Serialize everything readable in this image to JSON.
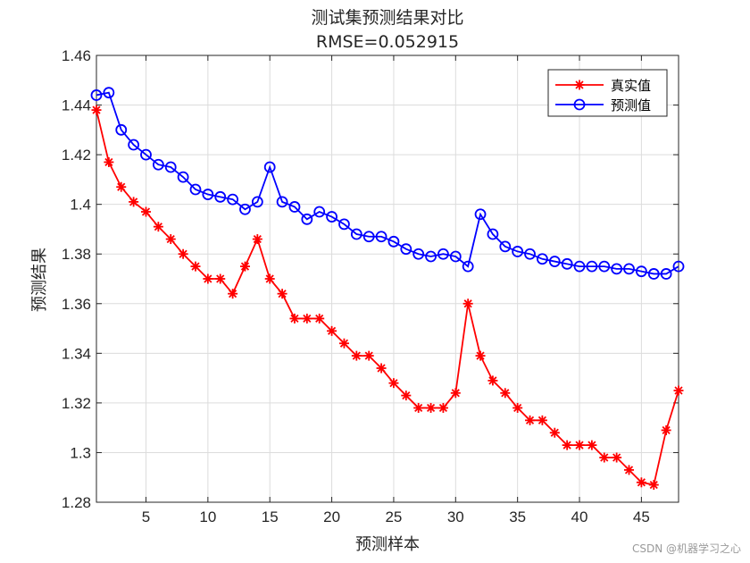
{
  "chart_data": {
    "type": "line",
    "title": "测试集预测结果对比",
    "subtitle": "RMSE=0.052915",
    "xlabel": "预测样本",
    "ylabel": "预测结果",
    "xlim": [
      1,
      48
    ],
    "ylim": [
      1.28,
      1.46
    ],
    "xticks": [
      5,
      10,
      15,
      20,
      25,
      30,
      35,
      40,
      45
    ],
    "yticks": [
      1.28,
      1.3,
      1.32,
      1.34,
      1.36,
      1.38,
      1.4,
      1.42,
      1.44,
      1.46
    ],
    "ytick_labels": [
      "1.28",
      "1.3",
      "1.32",
      "1.34",
      "1.36",
      "1.38",
      "1.4",
      "1.42",
      "1.44",
      "1.46"
    ],
    "grid": true,
    "legend_position": "top-right",
    "x": [
      1,
      2,
      3,
      4,
      5,
      6,
      7,
      8,
      9,
      10,
      11,
      12,
      13,
      14,
      15,
      16,
      17,
      18,
      19,
      20,
      21,
      22,
      23,
      24,
      25,
      26,
      27,
      28,
      29,
      30,
      31,
      32,
      33,
      34,
      35,
      36,
      37,
      38,
      39,
      40,
      41,
      42,
      43,
      44,
      45,
      46,
      47,
      48
    ],
    "series": [
      {
        "name": "真实值",
        "color": "#ff0000",
        "marker": "asterisk",
        "values": [
          1.438,
          1.417,
          1.407,
          1.401,
          1.397,
          1.391,
          1.386,
          1.38,
          1.375,
          1.37,
          1.37,
          1.364,
          1.375,
          1.386,
          1.37,
          1.364,
          1.354,
          1.354,
          1.354,
          1.349,
          1.344,
          1.339,
          1.339,
          1.334,
          1.328,
          1.323,
          1.318,
          1.318,
          1.318,
          1.324,
          1.36,
          1.339,
          1.329,
          1.324,
          1.318,
          1.313,
          1.313,
          1.308,
          1.303,
          1.303,
          1.303,
          1.298,
          1.298,
          1.293,
          1.288,
          1.287,
          1.309,
          1.325
        ]
      },
      {
        "name": "预测值",
        "color": "#0000ff",
        "marker": "circle",
        "values": [
          1.444,
          1.445,
          1.43,
          1.424,
          1.42,
          1.416,
          1.415,
          1.411,
          1.406,
          1.404,
          1.403,
          1.402,
          1.398,
          1.401,
          1.415,
          1.401,
          1.399,
          1.394,
          1.397,
          1.395,
          1.392,
          1.388,
          1.387,
          1.387,
          1.385,
          1.382,
          1.38,
          1.379,
          1.38,
          1.379,
          1.375,
          1.396,
          1.388,
          1.383,
          1.381,
          1.38,
          1.378,
          1.377,
          1.376,
          1.375,
          1.375,
          1.375,
          1.374,
          1.374,
          1.373,
          1.372,
          1.372,
          1.375
        ]
      }
    ]
  },
  "watermark": "CSDN @机器学习之心"
}
